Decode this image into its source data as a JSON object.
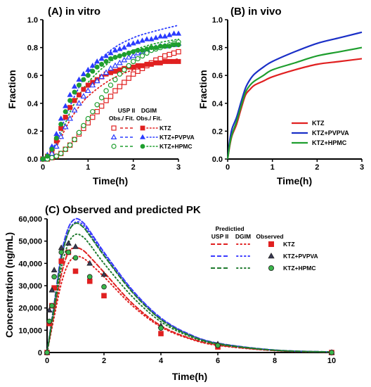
{
  "chart_data": [
    {
      "panel": "A",
      "type": "scatter",
      "title": "(A) in vitro",
      "xlabel": "Time(h)",
      "ylabel": "Fraction",
      "xlim": [
        0,
        3
      ],
      "ylim": [
        0,
        1
      ],
      "xticks": [
        "0",
        "1",
        "2",
        "3"
      ],
      "yticks": [
        "0.0",
        "0.2",
        "0.4",
        "0.6",
        "0.8",
        "1.0"
      ],
      "legend": {
        "header_usp": "USP II",
        "header_usp2": "Obs./ Fit.",
        "header_dgim": "DGIM",
        "header_dgim2": "Obs./ Fit.",
        "entries": [
          "KTZ",
          "KTZ+PVPVA",
          "KTZ+HPMC"
        ]
      },
      "series": [
        {
          "name": "KTZ",
          "method": "USP II",
          "marker": "open-square",
          "color": "#e02020",
          "x": [
            0,
            0.1,
            0.2,
            0.3,
            0.4,
            0.5,
            0.6,
            0.7,
            0.8,
            0.9,
            1.0,
            1.1,
            1.2,
            1.3,
            1.4,
            1.5,
            1.6,
            1.7,
            1.8,
            1.9,
            2.0,
            2.1,
            2.2,
            2.3,
            2.4,
            2.5,
            2.6,
            2.7,
            2.8,
            2.9,
            3.0
          ],
          "y": [
            0,
            0,
            0.01,
            0.02,
            0.04,
            0.07,
            0.1,
            0.14,
            0.18,
            0.22,
            0.26,
            0.3,
            0.34,
            0.38,
            0.42,
            0.45,
            0.49,
            0.52,
            0.55,
            0.58,
            0.61,
            0.63,
            0.65,
            0.67,
            0.69,
            0.71,
            0.72,
            0.74,
            0.75,
            0.76,
            0.77
          ]
        },
        {
          "name": "KTZ",
          "method": "DGIM",
          "marker": "filled-square",
          "color": "#e02020",
          "x": [
            0,
            0.1,
            0.2,
            0.3,
            0.4,
            0.5,
            0.6,
            0.7,
            0.8,
            0.9,
            1.0,
            1.1,
            1.2,
            1.3,
            1.4,
            1.5,
            1.6,
            1.7,
            1.8,
            1.9,
            2.0,
            2.1,
            2.2,
            2.3,
            2.4,
            2.5,
            2.6,
            2.7,
            2.8,
            2.9,
            3.0
          ],
          "y": [
            0,
            0.02,
            0.06,
            0.13,
            0.22,
            0.3,
            0.37,
            0.42,
            0.46,
            0.5,
            0.53,
            0.55,
            0.57,
            0.59,
            0.61,
            0.62,
            0.63,
            0.64,
            0.65,
            0.66,
            0.66,
            0.67,
            0.67,
            0.68,
            0.68,
            0.69,
            0.69,
            0.7,
            0.7,
            0.7,
            0.7
          ]
        },
        {
          "name": "KTZ+PVPVA",
          "method": "USP II",
          "marker": "open-triangle",
          "color": "#2a3bff",
          "x": [
            0,
            0.1,
            0.2,
            0.3,
            0.4,
            0.5,
            0.6,
            0.7,
            0.8,
            0.9,
            1.0,
            1.1,
            1.2,
            1.3,
            1.4,
            1.5,
            1.6,
            1.7,
            1.8,
            1.9,
            2.0,
            2.1,
            2.2,
            2.3,
            2.4,
            2.5,
            2.6,
            2.7,
            2.8,
            2.9,
            3.0
          ],
          "y": [
            0,
            0.01,
            0.04,
            0.09,
            0.16,
            0.23,
            0.29,
            0.35,
            0.4,
            0.45,
            0.49,
            0.53,
            0.56,
            0.59,
            0.62,
            0.65,
            0.67,
            0.69,
            0.71,
            0.73,
            0.74,
            0.76,
            0.77,
            0.78,
            0.79,
            0.8,
            0.81,
            0.81,
            0.82,
            0.82,
            0.83
          ]
        },
        {
          "name": "KTZ+PVPVA",
          "method": "DGIM",
          "marker": "filled-triangle",
          "color": "#2a3bff",
          "x": [
            0,
            0.1,
            0.2,
            0.3,
            0.4,
            0.5,
            0.6,
            0.7,
            0.8,
            0.9,
            1.0,
            1.1,
            1.2,
            1.3,
            1.4,
            1.5,
            1.6,
            1.7,
            1.8,
            1.9,
            2.0,
            2.1,
            2.2,
            2.3,
            2.4,
            2.5,
            2.6,
            2.7,
            2.8,
            2.9,
            3.0
          ],
          "y": [
            0,
            0.03,
            0.09,
            0.18,
            0.29,
            0.38,
            0.46,
            0.52,
            0.57,
            0.61,
            0.64,
            0.67,
            0.7,
            0.72,
            0.74,
            0.76,
            0.78,
            0.79,
            0.8,
            0.82,
            0.83,
            0.84,
            0.85,
            0.86,
            0.86,
            0.87,
            0.88,
            0.88,
            0.89,
            0.9,
            0.9
          ]
        },
        {
          "name": "KTZ+HPMC",
          "method": "USP II",
          "marker": "open-circle",
          "color": "#1e9e2e",
          "x": [
            0,
            0.1,
            0.2,
            0.3,
            0.4,
            0.5,
            0.6,
            0.7,
            0.8,
            0.9,
            1.0,
            1.1,
            1.2,
            1.3,
            1.4,
            1.5,
            1.6,
            1.7,
            1.8,
            1.9,
            2.0,
            2.1,
            2.2,
            2.3,
            2.4,
            2.5,
            2.6,
            2.7,
            2.8,
            2.9,
            3.0
          ],
          "y": [
            0,
            0,
            0.01,
            0.02,
            0.04,
            0.07,
            0.1,
            0.14,
            0.19,
            0.24,
            0.29,
            0.34,
            0.39,
            0.44,
            0.49,
            0.53,
            0.57,
            0.61,
            0.64,
            0.67,
            0.7,
            0.72,
            0.74,
            0.76,
            0.78,
            0.79,
            0.8,
            0.81,
            0.82,
            0.83,
            0.84
          ]
        },
        {
          "name": "KTZ+HPMC",
          "method": "DGIM",
          "marker": "filled-circle",
          "color": "#1e9e2e",
          "x": [
            0,
            0.1,
            0.2,
            0.3,
            0.4,
            0.5,
            0.6,
            0.7,
            0.8,
            0.9,
            1.0,
            1.1,
            1.2,
            1.3,
            1.4,
            1.5,
            1.6,
            1.7,
            1.8,
            1.9,
            2.0,
            2.1,
            2.2,
            2.3,
            2.4,
            2.5,
            2.6,
            2.7,
            2.8,
            2.9,
            3.0
          ],
          "y": [
            0,
            0.02,
            0.07,
            0.15,
            0.25,
            0.34,
            0.42,
            0.48,
            0.53,
            0.57,
            0.6,
            0.63,
            0.66,
            0.68,
            0.7,
            0.72,
            0.73,
            0.74,
            0.75,
            0.76,
            0.77,
            0.78,
            0.78,
            0.79,
            0.8,
            0.8,
            0.81,
            0.81,
            0.81,
            0.82,
            0.82
          ]
        }
      ],
      "fits": [
        {
          "name": "KTZ",
          "method": "DGIM",
          "color": "#e02020",
          "x": [
            0,
            0.1,
            0.2,
            0.3,
            0.4,
            0.5,
            0.7,
            1.0,
            1.5,
            2.0,
            2.5,
            3.0
          ],
          "y": [
            0,
            0.01,
            0.04,
            0.09,
            0.15,
            0.22,
            0.33,
            0.45,
            0.57,
            0.64,
            0.68,
            0.72
          ]
        },
        {
          "name": "KTZ+PVPVA",
          "method": "DGIM",
          "color": "#2a3bff",
          "x": [
            0,
            0.1,
            0.2,
            0.3,
            0.4,
            0.5,
            0.7,
            1.0,
            1.5,
            2.0,
            2.5,
            3.0
          ],
          "y": [
            0,
            0.02,
            0.06,
            0.13,
            0.21,
            0.3,
            0.45,
            0.62,
            0.78,
            0.87,
            0.92,
            0.96
          ]
        },
        {
          "name": "KTZ+HPMC",
          "method": "DGIM",
          "color": "#1e9e2e",
          "x": [
            0,
            0.1,
            0.2,
            0.3,
            0.4,
            0.5,
            0.7,
            1.0,
            1.5,
            2.0,
            2.5,
            3.0
          ],
          "y": [
            0,
            0.01,
            0.05,
            0.11,
            0.18,
            0.26,
            0.4,
            0.55,
            0.7,
            0.78,
            0.83,
            0.86
          ]
        }
      ]
    },
    {
      "panel": "B",
      "type": "line",
      "title": "(B) in vivo",
      "xlabel": "Time(h)",
      "ylabel": "Fraction",
      "xlim": [
        0,
        3
      ],
      "ylim": [
        0,
        1
      ],
      "xticks": [
        "0",
        "1",
        "2",
        "3"
      ],
      "yticks": [
        "0.0",
        "0.2",
        "0.4",
        "0.6",
        "0.8",
        "1.0"
      ],
      "legend_position": "bottom-right",
      "series": [
        {
          "name": "KTZ",
          "color": "#e02020",
          "x": [
            0,
            0.05,
            0.1,
            0.2,
            0.3,
            0.4,
            0.5,
            0.6,
            0.8,
            1.0,
            1.5,
            2.0,
            2.5,
            3.0
          ],
          "y": [
            0,
            0.1,
            0.17,
            0.25,
            0.36,
            0.46,
            0.5,
            0.53,
            0.56,
            0.59,
            0.64,
            0.68,
            0.7,
            0.72
          ]
        },
        {
          "name": "KTZ+PVPVA",
          "color": "#1a2fc7",
          "x": [
            0,
            0.05,
            0.1,
            0.2,
            0.3,
            0.4,
            0.5,
            0.6,
            0.8,
            1.0,
            1.5,
            2.0,
            2.5,
            3.0
          ],
          "y": [
            0,
            0.14,
            0.22,
            0.3,
            0.41,
            0.51,
            0.57,
            0.61,
            0.66,
            0.7,
            0.77,
            0.83,
            0.87,
            0.91
          ]
        },
        {
          "name": "KTZ+HPMC",
          "color": "#1e9e2e",
          "x": [
            0,
            0.05,
            0.1,
            0.2,
            0.3,
            0.4,
            0.5,
            0.6,
            0.8,
            1.0,
            1.5,
            2.0,
            2.5,
            3.0
          ],
          "y": [
            0,
            0.11,
            0.18,
            0.27,
            0.38,
            0.48,
            0.53,
            0.56,
            0.6,
            0.64,
            0.69,
            0.74,
            0.77,
            0.8
          ]
        }
      ]
    },
    {
      "panel": "C",
      "type": "line",
      "title": "(C) Observed and predicted PK",
      "xlabel": "Time(h)",
      "ylabel": "Concentration (ng/mL)",
      "xlim": [
        0,
        10
      ],
      "ylim": [
        0,
        60000
      ],
      "xticks": [
        "0",
        "2",
        "4",
        "6",
        "8",
        "10"
      ],
      "yticks": [
        "0",
        "10,000",
        "20,000",
        "30,000",
        "40,000",
        "50,000",
        "60,000"
      ],
      "legend": {
        "header_pred": "Predictied",
        "header_usp": "USP II",
        "header_dgim": "DGIM",
        "header_obs": "Observed",
        "entries": [
          "KTZ",
          "KTZ+PVPVA",
          "KTZ+HPMC"
        ]
      },
      "observed": [
        {
          "name": "KTZ",
          "marker": "square",
          "color": "#e02020",
          "x": [
            0,
            0.08,
            0.17,
            0.25,
            0.5,
            0.75,
            1.0,
            1.5,
            2.0,
            4.0,
            6.0,
            10.0
          ],
          "y": [
            0,
            13000,
            21000,
            29000,
            41000,
            45000,
            36500,
            32000,
            25500,
            8500,
            2500,
            0
          ]
        },
        {
          "name": "KTZ+PVPVA",
          "marker": "triangle",
          "color": "#3a3a55",
          "x": [
            0,
            0.08,
            0.17,
            0.25,
            0.5,
            0.75,
            1.0,
            1.5,
            2.0,
            4.0,
            6.0,
            10.0
          ],
          "y": [
            0,
            19000,
            28000,
            37000,
            47000,
            49000,
            47500,
            40000,
            35000,
            12000,
            3800,
            0
          ]
        },
        {
          "name": "KTZ+HPMC",
          "marker": "circle",
          "color": "#3ab54a",
          "x": [
            0,
            0.08,
            0.17,
            0.25,
            0.5,
            0.75,
            1.0,
            1.5,
            2.0,
            4.0,
            6.0,
            10.0
          ],
          "y": [
            0,
            14000,
            21000,
            34000,
            45000,
            45000,
            42500,
            34000,
            29500,
            11000,
            3200,
            0
          ]
        }
      ],
      "predicted": [
        {
          "name": "KTZ",
          "method": "USP II",
          "color": "#e02020",
          "x": [
            0,
            0.25,
            0.5,
            0.75,
            1.0,
            1.25,
            1.5,
            2.0,
            3.0,
            4.0,
            5.0,
            6.0,
            8.0,
            10.0
          ],
          "y": [
            0,
            18000,
            35000,
            45000,
            47000,
            46000,
            43000,
            36000,
            22000,
            12000,
            6500,
            3400,
            900,
            200
          ]
        },
        {
          "name": "KTZ",
          "method": "DGIM",
          "color": "#e02020",
          "x": [
            0,
            0.25,
            0.5,
            0.75,
            1.0,
            1.25,
            1.5,
            2.0,
            3.0,
            4.0,
            5.0,
            6.0,
            8.0,
            10.0
          ],
          "y": [
            0,
            16000,
            31000,
            40000,
            43000,
            42500,
            40000,
            34000,
            21000,
            11500,
            6200,
            3200,
            850,
            200
          ]
        },
        {
          "name": "KTZ+PVPVA",
          "method": "USP II",
          "color": "#3a3aff",
          "x": [
            0,
            0.25,
            0.5,
            0.75,
            1.0,
            1.25,
            1.5,
            2.0,
            3.0,
            4.0,
            5.0,
            6.0,
            8.0,
            10.0
          ],
          "y": [
            0,
            22000,
            44000,
            56000,
            60000,
            58500,
            54500,
            45000,
            28000,
            15500,
            8200,
            4200,
            1100,
            250
          ]
        },
        {
          "name": "KTZ+PVPVA",
          "method": "DGIM",
          "color": "#3a3aff",
          "x": [
            0,
            0.25,
            0.5,
            0.75,
            1.0,
            1.25,
            1.5,
            2.0,
            3.0,
            4.0,
            5.0,
            6.0,
            8.0,
            10.0
          ],
          "y": [
            0,
            21000,
            42000,
            54000,
            58500,
            57500,
            53500,
            44000,
            27500,
            15000,
            8000,
            4100,
            1050,
            250
          ]
        },
        {
          "name": "KTZ+HPMC",
          "method": "USP II",
          "color": "#1e7a2e",
          "x": [
            0,
            0.25,
            0.5,
            0.75,
            1.0,
            1.25,
            1.5,
            2.0,
            3.0,
            4.0,
            5.0,
            6.0,
            8.0,
            10.0
          ],
          "y": [
            0,
            21000,
            42000,
            54000,
            58000,
            56500,
            52500,
            43500,
            27000,
            14800,
            7800,
            4000,
            1050,
            250
          ]
        },
        {
          "name": "KTZ+HPMC",
          "method": "DGIM",
          "color": "#1e7a2e",
          "x": [
            0,
            0.25,
            0.5,
            0.75,
            1.0,
            1.25,
            1.5,
            2.0,
            3.0,
            4.0,
            5.0,
            6.0,
            8.0,
            10.0
          ],
          "y": [
            0,
            19000,
            38000,
            49000,
            53000,
            52000,
            48500,
            40000,
            25000,
            13800,
            7300,
            3700,
            1000,
            230
          ]
        }
      ]
    }
  ]
}
